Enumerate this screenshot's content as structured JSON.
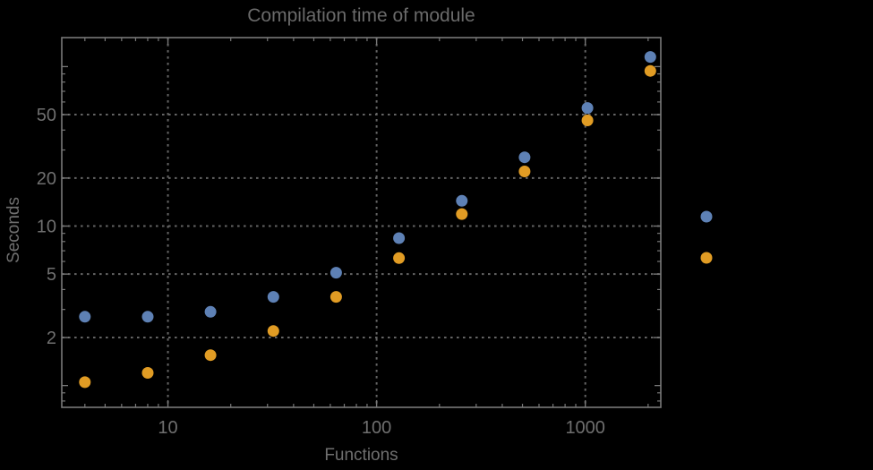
{
  "colors": {
    "background": "#000000",
    "frame": "#787878",
    "grid": "#646464",
    "tick_label": "#6f6f6f",
    "title_text": "#6a6a6a",
    "series_blue": "#5e81b5",
    "series_orange": "#e19c24"
  },
  "chart_data": {
    "type": "scatter",
    "title": "Compilation time of module",
    "xlabel": "Functions",
    "ylabel": "Seconds",
    "x_scale": "log",
    "y_scale": "log",
    "grid": true,
    "x_ticks": [
      10,
      100,
      1000
    ],
    "y_ticks": [
      2,
      5,
      10,
      20,
      50
    ],
    "y_unlabeled_major_ticks": [
      1,
      100
    ],
    "x_range": [
      3.1,
      2300
    ],
    "y_range": [
      0.73,
      152
    ],
    "x": [
      4,
      8,
      16,
      32,
      64,
      128,
      256,
      512,
      1024,
      2048
    ],
    "series": [
      {
        "name": "series-blue",
        "color": "#5e81b5",
        "values": [
          2.7,
          2.7,
          2.9,
          3.6,
          5.1,
          8.4,
          14.4,
          27,
          55,
          115
        ]
      },
      {
        "name": "series-orange",
        "color": "#e19c24",
        "values": [
          1.05,
          1.2,
          1.55,
          2.2,
          3.6,
          6.3,
          11.9,
          22,
          46,
          94
        ]
      }
    ],
    "legend": {
      "position": "right-of-plot",
      "labels_visible": false,
      "markers": [
        {
          "name": "legend-marker-blue",
          "color": "#5e81b5"
        },
        {
          "name": "legend-marker-orange",
          "color": "#e19c24"
        }
      ]
    }
  }
}
